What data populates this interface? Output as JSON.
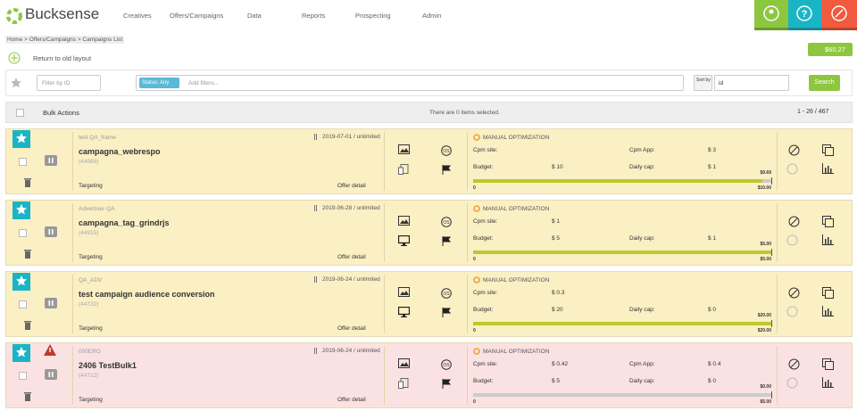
{
  "header": {
    "logo": "Bucksense",
    "nav": [
      "Creatives",
      "Offers/Campaigns",
      "Data",
      "Reports",
      "Prospecting",
      "Admin"
    ]
  },
  "breadcrumb": "Home > Offers/Campaigns > Campaigns List",
  "return_link": "Return to old layout",
  "balance": "$60.27",
  "filters": {
    "filter_by_id": "Filter by ID",
    "status_chip": "Status: Any",
    "add_filters": "Add filters...",
    "sort_by": "Sort by",
    "sort_field": "id",
    "search": "Search"
  },
  "bulk": {
    "actions": "Bulk Actions",
    "selection": "There are 0 items selected.",
    "pagination": "1 - 26 / 467"
  },
  "campaigns": [
    {
      "advertiser": "test QA_frame",
      "dates": "2019-07-01 / unlimited",
      "name": "campagna_webrespo",
      "id": "(44989)",
      "targeting": "Targeting",
      "offer_detail": "Offer detail",
      "optimization": "MANUAL OPTIMIZATION",
      "background": "#fbefc4",
      "cpm_site": {
        "label": "Cpm site:"
      },
      "cpm_app": {
        "label": "Cpm App:",
        "value": "$ 3"
      },
      "budget": {
        "label": "Budget:",
        "value": "$ 10"
      },
      "daily_cap": {
        "label": "Daily cap:",
        "value": "$ 1"
      },
      "progress": {
        "value": 9.69,
        "label": "$9.69",
        "max": 10,
        "max_label": "$10.00",
        "min": 0,
        "color": "#bcca2c"
      }
    },
    {
      "advertiser": "Advertiser QA",
      "dates": "2019-06-28 / unlimited",
      "name": "campagna_tag_grindrjs",
      "id": "(44915)",
      "targeting": "Targeting",
      "offer_detail": "Offer detail",
      "optimization": "MANUAL OPTIMIZATION",
      "background": "#fbefc4",
      "cpm_site": {
        "label": "Cpm site:",
        "value": "$ 1"
      },
      "budget": {
        "label": "Budget:",
        "value": "$ 5"
      },
      "daily_cap": {
        "label": "Daily cap:",
        "value": "$ 1"
      },
      "progress": {
        "value": 5,
        "label": "$5.00",
        "max": 5,
        "max_label": "$5.00",
        "min": 0,
        "color": "#bcca2c"
      }
    },
    {
      "advertiser": "QA_ADV",
      "dates": "2019-06-24 / unlimited",
      "name": "test campaign audience conversion",
      "id": "(44722)",
      "targeting": "Targeting",
      "offer_detail": "Offer detail",
      "optimization": "MANUAL OPTIMIZATION",
      "background": "#fbefc4",
      "cpm_site": {
        "label": "Cpm site:",
        "value": "$ 0.3"
      },
      "budget": {
        "label": "Budget:",
        "value": "$ 20"
      },
      "daily_cap": {
        "label": "Daily cap:",
        "value": "$ 0"
      },
      "progress": {
        "value": 20,
        "label": "$20.00",
        "max": 20,
        "max_label": "$20.00",
        "min": 0,
        "color": "#bcca2c"
      }
    },
    {
      "advertiser": "000ERG",
      "dates": "2019-06-24 / unlimited",
      "name": "2406 TestBulk1",
      "id": "(44712)",
      "targeting": "Targeting",
      "offer_detail": "Offer detail",
      "optimization": "MANUAL OPTIMIZATION",
      "background": "#fbe2e2",
      "alert": true,
      "cpm_site": {
        "label": "Cpm site:",
        "value": "$ 0.42"
      },
      "cpm_app": {
        "label": "Cpm App:",
        "value": "$ 0.4"
      },
      "budget": {
        "label": "Budget:",
        "value": "$ 5"
      },
      "daily_cap": {
        "label": "Daily cap:",
        "value": "$ 0"
      },
      "progress": {
        "value": 0,
        "label": "$0.00",
        "max": 5,
        "max_label": "$5.00",
        "min": 0,
        "color": "#bcca2c"
      }
    }
  ]
}
